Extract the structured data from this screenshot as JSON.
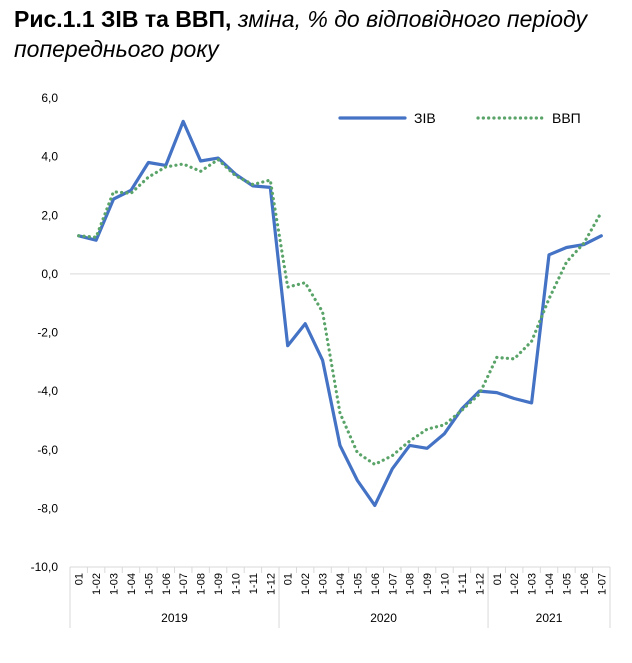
{
  "title_bold": "Рис.1.1 ЗІВ та ВВП,",
  "title_italic": "зміна, % до відповідного періоду попереднього року",
  "chart_data": {
    "type": "line",
    "ylim": [
      -10,
      6
    ],
    "yticks": [
      "6,0",
      "4,0",
      "2,0",
      "0,0",
      "-2,0",
      "-4,0",
      "-6,0",
      "-8,0",
      "-10,0"
    ],
    "ytick_values": [
      6,
      4,
      2,
      0,
      -2,
      -4,
      -6,
      -8,
      -10
    ],
    "x": [
      "01",
      "1-02",
      "1-03",
      "1-04",
      "1-05",
      "1-06",
      "1-07",
      "1-08",
      "1-09",
      "1-10",
      "1-11",
      "1-12",
      "01",
      "1-02",
      "1-03",
      "1-04",
      "1-05",
      "1-06",
      "1-07",
      "1-08",
      "1-09",
      "1-10",
      "1-11",
      "1-12",
      "01",
      "1-02",
      "1-03",
      "1-04",
      "1-05",
      "1-06",
      "1-07"
    ],
    "years": [
      {
        "label": "2019",
        "start": 0,
        "end": 11
      },
      {
        "label": "2020",
        "start": 12,
        "end": 23
      },
      {
        "label": "2021",
        "start": 24,
        "end": 30
      }
    ],
    "series": [
      {
        "name": "ЗІВ",
        "color": "#4472c4",
        "style": "solid",
        "values": [
          1.3,
          1.15,
          2.55,
          2.85,
          3.8,
          3.7,
          5.2,
          3.85,
          3.95,
          3.4,
          3.0,
          2.95,
          -2.45,
          -1.7,
          -2.95,
          -5.85,
          -7.05,
          -7.9,
          -6.65,
          -5.85,
          -5.95,
          -5.45,
          -4.6,
          -4.0,
          -4.05,
          -4.25,
          -4.4,
          0.65,
          0.9,
          1.0,
          1.3
        ]
      },
      {
        "name": "ВВП",
        "color": "#5aa469",
        "style": "dotted",
        "values": [
          1.3,
          1.25,
          2.8,
          2.75,
          3.3,
          3.65,
          3.75,
          3.5,
          3.9,
          3.35,
          3.05,
          3.2,
          -0.45,
          -0.3,
          -1.3,
          -4.75,
          -6.1,
          -6.5,
          -6.2,
          -5.7,
          -5.3,
          -5.15,
          -4.65,
          -4.1,
          -2.85,
          -2.9,
          -2.3,
          -0.85,
          0.4,
          1.05,
          2.1
        ]
      }
    ],
    "legend_position": "top-right"
  }
}
